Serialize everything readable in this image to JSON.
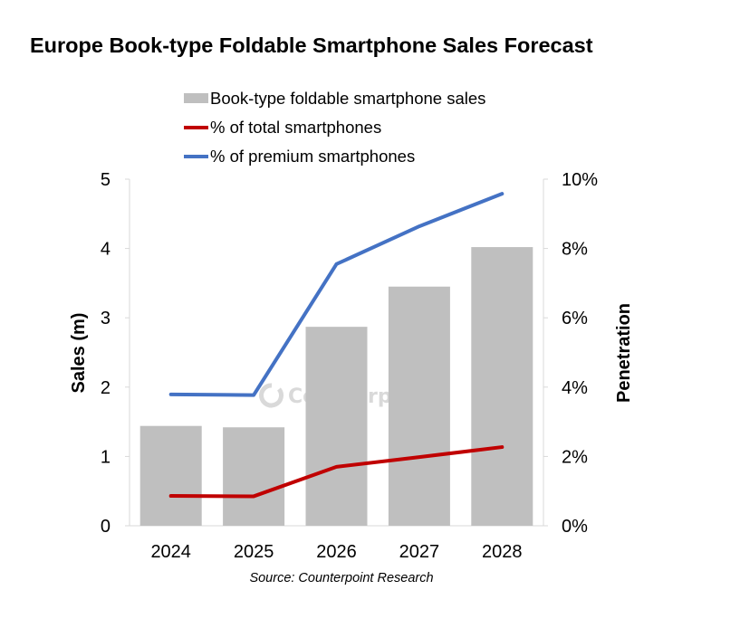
{
  "chart_data": {
    "type": "bar",
    "title": "Europe Book-type Foldable Smartphone Sales Forecast",
    "categories": [
      "2024",
      "2025",
      "2026",
      "2027",
      "2028"
    ],
    "series": [
      {
        "name": "Book-type foldable smartphone sales",
        "kind": "bar",
        "axis": "left",
        "color": "#bfbfbf",
        "values": [
          1.44,
          1.42,
          2.87,
          3.45,
          4.02
        ]
      },
      {
        "name": "% of total smartphones",
        "kind": "line",
        "axis": "right",
        "color": "#c00000",
        "values": [
          0.86,
          0.85,
          1.7,
          1.98,
          2.27
        ]
      },
      {
        "name": "% of premium smartphones",
        "kind": "line",
        "axis": "right",
        "color": "#4472c4",
        "values": [
          3.79,
          3.77,
          7.55,
          8.64,
          9.58
        ]
      }
    ],
    "ylabel": "Sales (m)",
    "ylim": [
      0,
      5
    ],
    "yticks": [
      "0",
      "1",
      "2",
      "3",
      "4",
      "5"
    ],
    "y2label": "Penetration",
    "y2lim": [
      0,
      10
    ],
    "y2ticks": [
      "0%",
      "2%",
      "4%",
      "6%",
      "8%",
      "10%"
    ],
    "xlabel": "",
    "grid": false,
    "legend_position": "top",
    "source": "Source: Counterpoint Research",
    "watermark": "Counterpoint"
  }
}
